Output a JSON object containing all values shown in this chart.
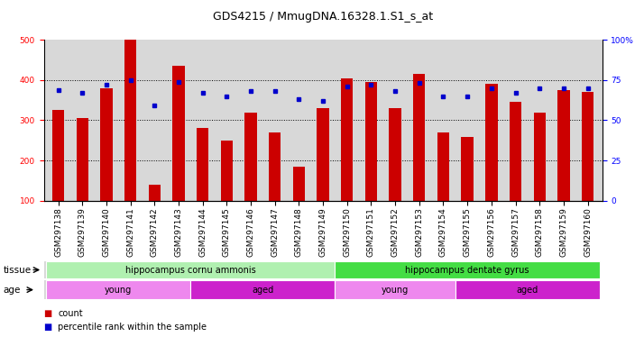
{
  "title": "GDS4215 / MmugDNA.16328.1.S1_s_at",
  "samples": [
    "GSM297138",
    "GSM297139",
    "GSM297140",
    "GSM297141",
    "GSM297142",
    "GSM297143",
    "GSM297144",
    "GSM297145",
    "GSM297146",
    "GSM297147",
    "GSM297148",
    "GSM297149",
    "GSM297150",
    "GSM297151",
    "GSM297152",
    "GSM297153",
    "GSM297154",
    "GSM297155",
    "GSM297156",
    "GSM297157",
    "GSM297158",
    "GSM297159",
    "GSM297160"
  ],
  "bar_values": [
    325,
    305,
    380,
    500,
    140,
    435,
    280,
    250,
    320,
    270,
    185,
    330,
    405,
    395,
    330,
    415,
    270,
    258,
    390,
    345,
    320,
    375,
    370
  ],
  "percentile_values": [
    69,
    67,
    72,
    75,
    59,
    74,
    67,
    65,
    68,
    68,
    63,
    62,
    71,
    72,
    68,
    73,
    65,
    65,
    70,
    67,
    70,
    70,
    70
  ],
  "bar_color": "#cc0000",
  "marker_color": "#0000cc",
  "ylim_left": [
    100,
    500
  ],
  "ylim_right": [
    0,
    100
  ],
  "yticks_left": [
    100,
    200,
    300,
    400,
    500
  ],
  "yticks_right": [
    0,
    25,
    50,
    75,
    100
  ],
  "tissue_groups": [
    {
      "label": "hippocampus cornu ammonis",
      "start": 0,
      "end": 12,
      "color": "#b0f0b0"
    },
    {
      "label": "hippocampus dentate gyrus",
      "start": 12,
      "end": 23,
      "color": "#44dd44"
    }
  ],
  "age_groups": [
    {
      "label": "young",
      "start": 0,
      "end": 6,
      "color": "#ee88ee"
    },
    {
      "label": "aged",
      "start": 6,
      "end": 12,
      "color": "#cc22cc"
    },
    {
      "label": "young",
      "start": 12,
      "end": 17,
      "color": "#ee88ee"
    },
    {
      "label": "aged",
      "start": 17,
      "end": 23,
      "color": "#cc22cc"
    }
  ],
  "tissue_label": "tissue",
  "age_label": "age",
  "legend_count": "count",
  "legend_percentile": "percentile rank within the sample",
  "bg_color": "#d8d8d8",
  "title_fontsize": 9,
  "tick_fontsize": 6.5,
  "bar_width": 0.5,
  "hline_values": [
    200,
    300,
    400
  ],
  "ytick_right_labels": [
    "0",
    "25",
    "50",
    "75",
    "100%"
  ]
}
